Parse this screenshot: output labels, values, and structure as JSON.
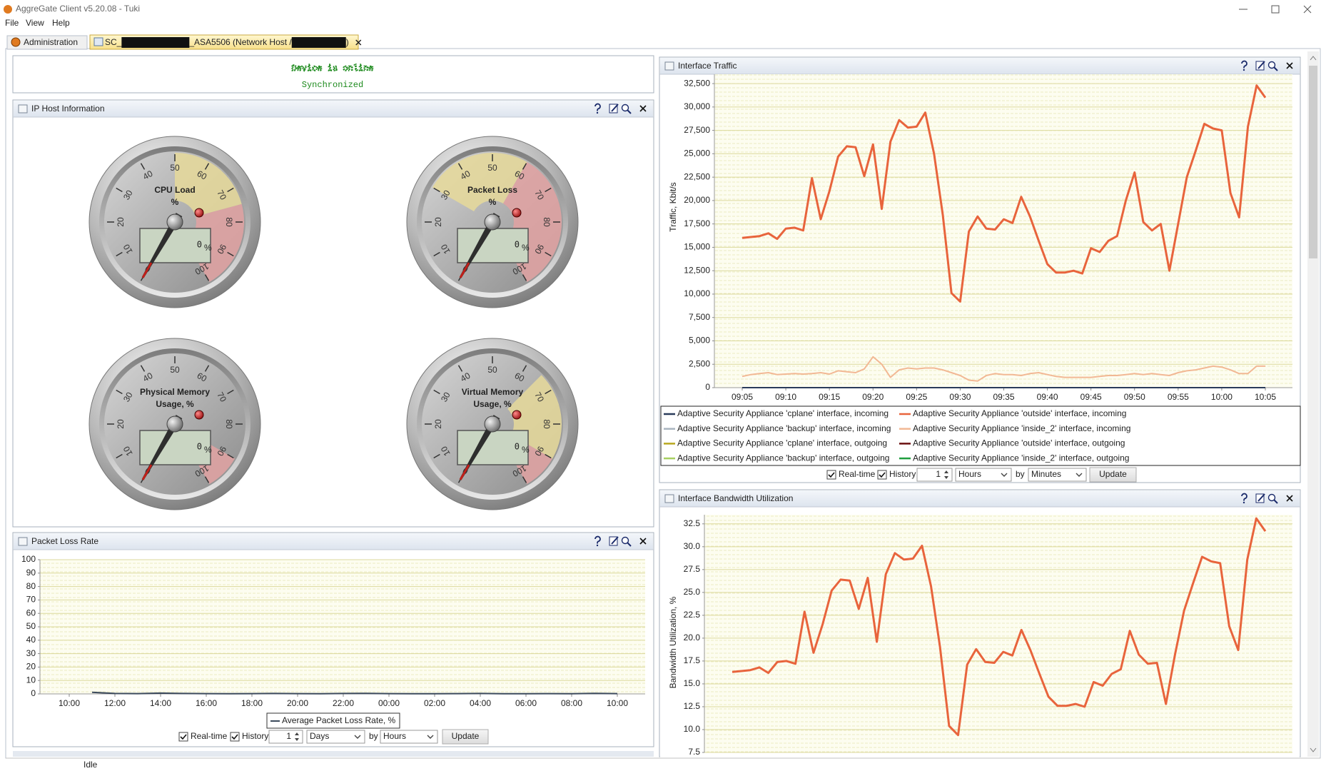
{
  "window": {
    "title": "AggreGate Client v5.20.08 - Tuki",
    "menu": [
      "File",
      "View",
      "Help"
    ]
  },
  "tabs": [
    {
      "label": "Administration"
    },
    {
      "parts": [
        "SC_",
        "_ASA5506 (Network Host / ",
        ")"
      ]
    }
  ],
  "banner": {
    "text": "Device is online",
    "sub": "Synchronized"
  },
  "ip_host": {
    "title": "IP Host Information",
    "dial": {
      "range": [
        0,
        100
      ],
      "ticks": [
        0,
        10,
        20,
        30,
        40,
        50,
        60,
        70,
        80,
        90,
        100
      ]
    },
    "gauges": [
      {
        "label": [
          "CPU Load",
          "%"
        ],
        "unit": "%",
        "value": 0,
        "zones": [
          {
            "from": 50,
            "to": 75,
            "color": "#e6d99a"
          },
          {
            "from": 75,
            "to": 100,
            "color": "#e2a2a2"
          }
        ]
      },
      {
        "label": [
          "Packet Loss",
          "%"
        ],
        "unit": "%",
        "value": 0,
        "zones": [
          {
            "from": 30,
            "to": 60,
            "color": "#e6d99a"
          },
          {
            "from": 60,
            "to": 100,
            "color": "#e2a2a2"
          }
        ]
      },
      {
        "label": [
          "Physical Memory",
          "Usage, %"
        ],
        "unit": "%",
        "value": 0,
        "zones": [
          {
            "from": 90,
            "to": 100,
            "color": "#e2a2a2"
          }
        ]
      },
      {
        "label": [
          "Virtual Memory",
          "Usage, %"
        ],
        "unit": "%",
        "value": 0,
        "zones": [
          {
            "from": 65,
            "to": 90,
            "color": "#e6d99a"
          },
          {
            "from": 90,
            "to": 100,
            "color": "#e2a2a2"
          }
        ]
      }
    ]
  },
  "packet_loss": {
    "title": "Packet Loss Rate",
    "chart": {
      "type": "line",
      "categories": [
        "10:00",
        null,
        "12:00",
        null,
        "14:00",
        null,
        "16:00",
        null,
        "18:00",
        null,
        "20:00",
        null,
        "22:00",
        null,
        "00:00",
        null,
        "02:00",
        null,
        "04:00",
        null,
        "06:00",
        null,
        "08:00",
        null,
        "10:00"
      ],
      "series": [
        {
          "name": "Average Packet Loss Rate, %",
          "color": "#3c4a5c",
          "values": [
            null,
            1.2,
            0.3,
            0.2,
            0.6,
            0.3,
            0.2,
            0.1,
            0.2,
            0.3,
            0.2,
            0.1,
            0.3,
            0.4,
            0.2,
            0.1,
            0.1,
            0.2,
            0.3,
            0.1,
            0.1,
            0.2,
            0.1,
            0.4,
            0.2
          ]
        }
      ],
      "ylim": [
        0,
        100
      ],
      "yticks": [
        0,
        10,
        20,
        30,
        40,
        50,
        60,
        70,
        80,
        90,
        100
      ],
      "grid": true
    },
    "controls": {
      "realtime": {
        "label": "Real-time",
        "checked": true
      },
      "history": {
        "label": "History",
        "checked": true
      },
      "count": 1,
      "period": "Days",
      "by": "by",
      "step": "Hours",
      "button": "Update"
    }
  },
  "traffic": {
    "title": "Interface Traffic",
    "chart": {
      "type": "line",
      "y_label": "Traffic, Kbit/s",
      "categories": [
        "09:05",
        null,
        null,
        null,
        null,
        "09:10",
        null,
        null,
        null,
        null,
        "09:15",
        null,
        null,
        null,
        null,
        "09:20",
        null,
        null,
        null,
        null,
        "09:25",
        null,
        null,
        null,
        null,
        "09:30",
        null,
        null,
        null,
        null,
        "09:35",
        null,
        null,
        null,
        null,
        "09:40",
        null,
        null,
        null,
        null,
        "09:45",
        null,
        null,
        null,
        null,
        "09:50",
        null,
        null,
        null,
        null,
        "09:55",
        null,
        null,
        null,
        null,
        "10:00",
        null,
        null,
        null,
        null,
        "10:05"
      ],
      "series": [
        {
          "name": "Adaptive Security Appliance 'cplane' interface, incoming",
          "color": "#2a3b5a",
          "values": [
            0,
            0,
            0,
            0,
            0,
            0,
            0,
            0,
            0,
            0,
            0,
            0,
            0,
            0,
            0,
            0,
            0,
            0,
            0,
            0,
            0,
            0,
            0,
            0,
            0,
            0,
            0,
            0,
            0,
            0,
            0,
            0,
            0,
            0,
            0,
            0,
            0,
            0,
            0,
            0,
            0,
            0,
            0,
            0,
            0,
            0,
            0,
            0,
            0,
            0,
            0,
            0,
            0,
            0,
            0,
            0,
            0,
            0,
            0,
            0,
            0
          ]
        },
        {
          "name": "Adaptive Security Appliance 'outside' interface, incoming",
          "color": "#e8643c",
          "values": [
            16000,
            16100,
            16200,
            16500,
            15900,
            17000,
            17100,
            16800,
            22400,
            18000,
            21000,
            24700,
            25800,
            25700,
            22600,
            26000,
            19100,
            26300,
            28600,
            27800,
            27900,
            29400,
            25000,
            18500,
            10100,
            9200,
            16700,
            18300,
            17000,
            16900,
            18000,
            17600,
            20400,
            18300,
            15700,
            13200,
            12300,
            12300,
            12500,
            12200,
            14900,
            14500,
            15700,
            16200,
            20000,
            23000,
            17700,
            16800,
            17500,
            12500,
            17500,
            22500,
            25300,
            28200,
            27700,
            27500,
            20800,
            18200,
            27900,
            32300,
            31000
          ]
        },
        {
          "name": "Adaptive Security Appliance 'backup' interface, incoming",
          "color": "#a9b4bf",
          "values": [
            0,
            0,
            0,
            0,
            0,
            0,
            0,
            0,
            0,
            0,
            0,
            0,
            0,
            0,
            0,
            0,
            0,
            0,
            0,
            0,
            0,
            0,
            0,
            0,
            0,
            0,
            0,
            0,
            0,
            0,
            0,
            0,
            0,
            0,
            0,
            0,
            0,
            0,
            0,
            0,
            0,
            0,
            0,
            0,
            0,
            0,
            0,
            0,
            0,
            0,
            0,
            0,
            0,
            0,
            0,
            0,
            0,
            0,
            0,
            0,
            0
          ]
        },
        {
          "name": "Adaptive Security Appliance 'inside_2' interface, incoming",
          "color": "#f2b894",
          "values": [
            1200,
            1400,
            1500,
            1600,
            1400,
            1450,
            1500,
            1450,
            1500,
            1600,
            1450,
            1800,
            1700,
            1600,
            2000,
            3300,
            2500,
            1100,
            1900,
            2100,
            2000,
            2100,
            2100,
            1900,
            1600,
            1300,
            800,
            700,
            1300,
            1500,
            1400,
            1400,
            1300,
            1500,
            1600,
            1400,
            1200,
            1100,
            1100,
            1100,
            1100,
            1200,
            1300,
            1300,
            1400,
            1500,
            1400,
            1500,
            1400,
            1300,
            1600,
            1800,
            1900,
            2100,
            2300,
            2200,
            1900,
            1500,
            1500,
            2300,
            2300
          ]
        },
        {
          "name": "Adaptive Security Appliance 'cplane' interface, outgoing",
          "color": "#b8a81e",
          "values": [
            0,
            0,
            0,
            0,
            0,
            0,
            0,
            0,
            0,
            0,
            0,
            0,
            0,
            0,
            0,
            0,
            0,
            0,
            0,
            0,
            0,
            0,
            0,
            0,
            0,
            0,
            0,
            0,
            0,
            0,
            0,
            0,
            0,
            0,
            0,
            0,
            0,
            0,
            0,
            0,
            0,
            0,
            0,
            0,
            0,
            0,
            0,
            0,
            0,
            0,
            0,
            0,
            0,
            0,
            0,
            0,
            0,
            0,
            0,
            0,
            0
          ]
        },
        {
          "name": "Adaptive Security Appliance 'outside' interface, outgoing",
          "color": "#6b0f0f",
          "values": [
            0,
            0,
            0,
            0,
            0,
            0,
            0,
            0,
            0,
            0,
            0,
            0,
            0,
            0,
            0,
            0,
            0,
            0,
            0,
            0,
            0,
            0,
            0,
            0,
            0,
            0,
            0,
            0,
            0,
            0,
            0,
            0,
            0,
            0,
            0,
            0,
            0,
            0,
            0,
            0,
            0,
            0,
            0,
            0,
            0,
            0,
            0,
            0,
            0,
            0,
            0,
            0,
            0,
            0,
            0,
            0,
            0,
            0,
            0,
            0,
            0
          ]
        },
        {
          "name": "Adaptive Security Appliance 'backup' interface, outgoing",
          "color": "#a8d060",
          "values": [
            0,
            0,
            0,
            0,
            0,
            0,
            0,
            0,
            0,
            0,
            0,
            0,
            0,
            0,
            0,
            0,
            0,
            0,
            0,
            0,
            0,
            0,
            0,
            0,
            0,
            0,
            0,
            0,
            0,
            0,
            0,
            0,
            0,
            0,
            0,
            0,
            0,
            0,
            0,
            0,
            0,
            0,
            0,
            0,
            0,
            0,
            0,
            0,
            0,
            0,
            0,
            0,
            0,
            0,
            0,
            0,
            0,
            0,
            0,
            0,
            0
          ]
        },
        {
          "name": "Adaptive Security Appliance 'inside_2' interface, outgoing",
          "color": "#1e9e3e",
          "values": [
            0,
            0,
            0,
            0,
            0,
            0,
            0,
            0,
            0,
            0,
            0,
            0,
            0,
            0,
            0,
            0,
            0,
            0,
            0,
            0,
            0,
            0,
            0,
            0,
            0,
            0,
            0,
            0,
            0,
            0,
            0,
            0,
            0,
            0,
            0,
            0,
            0,
            0,
            0,
            0,
            0,
            0,
            0,
            0,
            0,
            0,
            0,
            0,
            0,
            0,
            0,
            0,
            0,
            0,
            0,
            0,
            0,
            0,
            0,
            0,
            0
          ]
        }
      ],
      "ylim": [
        0,
        33500
      ],
      "yticks": [
        0,
        {
          "value": 2500,
          "label": "2,500"
        },
        {
          "value": 5000,
          "label": "5,000"
        },
        {
          "value": 7500,
          "label": "7,500"
        },
        {
          "value": 10000,
          "label": "10,000"
        },
        {
          "value": 12500,
          "label": "12,500"
        },
        {
          "value": 15000,
          "label": "15,000"
        },
        {
          "value": 17500,
          "label": "17,500"
        },
        {
          "value": 20000,
          "label": "20,000"
        },
        {
          "value": 22500,
          "label": "22,500"
        },
        {
          "value": 25000,
          "label": "25,000"
        },
        {
          "value": 27500,
          "label": "27,500"
        },
        {
          "value": 30000,
          "label": "30,000"
        },
        {
          "value": 32500,
          "label": "32,500"
        }
      ],
      "grid": true
    },
    "controls": {
      "realtime": {
        "label": "Real-time",
        "checked": true
      },
      "history": {
        "label": "History",
        "checked": true
      },
      "count": 1,
      "period": "Hours",
      "by": "by",
      "step": "Minutes",
      "button": "Update"
    }
  },
  "bandwidth": {
    "title": "Interface Bandwidth Utilization",
    "chart": {
      "type": "line",
      "y_label": "Bandwidth Utilization, %",
      "color": "#e8643c",
      "values": [
        16.3,
        16.4,
        16.5,
        16.8,
        16.2,
        17.4,
        17.5,
        17.2,
        22.9,
        18.4,
        21.5,
        25.2,
        26.4,
        26.3,
        23.2,
        26.6,
        19.6,
        27.0,
        29.3,
        28.6,
        28.7,
        30.1,
        25.7,
        19.0,
        10.4,
        9.4,
        17.1,
        18.8,
        17.4,
        17.3,
        18.5,
        18.1,
        20.9,
        18.7,
        16.1,
        13.6,
        12.6,
        12.6,
        12.8,
        12.5,
        15.2,
        14.8,
        16.1,
        16.6,
        20.8,
        18.2,
        17.2,
        17.3,
        12.8,
        18.2,
        23.0,
        26.0,
        28.9,
        28.4,
        28.2,
        21.3,
        18.7,
        28.6,
        33.1,
        31.7
      ],
      "ylim": [
        7.5,
        33.5
      ],
      "yticks": [
        7.5,
        {
          "value": 10,
          "label": "10.0"
        },
        12.5,
        {
          "value": 15,
          "label": "15.0"
        },
        17.5,
        {
          "value": 20,
          "label": "20.0"
        },
        22.5,
        {
          "value": 25,
          "label": "25.0"
        },
        27.5,
        {
          "value": 30,
          "label": "30.0"
        },
        32.5
      ],
      "grid": true
    }
  },
  "status_bar": "Idle"
}
